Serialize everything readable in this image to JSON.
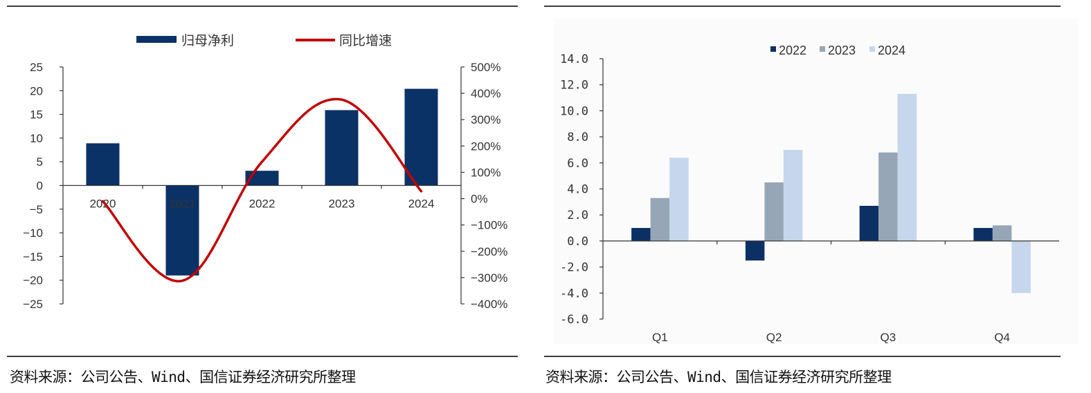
{
  "left": {
    "source": "资料来源：公司公告、Wind、国信证券经济研究所整理"
  },
  "right": {
    "source": "资料来源：公司公告、Wind、国信证券经济研究所整理"
  },
  "chart_data": [
    {
      "type": "bar+line",
      "title": "",
      "categories": [
        "2020",
        "2021",
        "2022",
        "2023",
        "2024"
      ],
      "series": [
        {
          "name": "归母净利",
          "type": "bar",
          "axis": "left",
          "color": "#0b3266",
          "values": [
            8.9,
            -19.0,
            3.1,
            15.9,
            20.4
          ]
        },
        {
          "name": "同比增速",
          "type": "line",
          "axis": "right",
          "color": "#c00000",
          "values": [
            -10,
            -312,
            140,
            376,
            28
          ]
        }
      ],
      "y_left": {
        "ylim": [
          -25,
          25
        ],
        "ticks": [
          25,
          20,
          15,
          10,
          5,
          0,
          -5,
          -10,
          -15,
          -20,
          -25
        ],
        "tick_labels": [
          "25",
          "20",
          "15",
          "10",
          "5",
          "0",
          "−5",
          "−10",
          "−15",
          "−20",
          "−25"
        ]
      },
      "y_right": {
        "ylim": [
          -400,
          500
        ],
        "ticks": [
          500,
          400,
          300,
          200,
          100,
          0,
          -100,
          -200,
          -300,
          -400
        ],
        "tick_labels": [
          "500%",
          "400%",
          "300%",
          "200%",
          "100%",
          "0%",
          "−100%",
          "−200%",
          "−300%",
          "−400%"
        ]
      },
      "xlabel": "",
      "ylabel": "",
      "grid": false,
      "legend": "top-center"
    },
    {
      "type": "bar",
      "title": "",
      "categories": [
        "Q1",
        "Q2",
        "Q3",
        "Q4"
      ],
      "series": [
        {
          "name": "2022",
          "color": "#0c2f64",
          "values": [
            1.0,
            -1.5,
            2.7,
            1.0
          ]
        },
        {
          "name": "2023",
          "color": "#97a6b6",
          "values": [
            3.3,
            4.5,
            6.8,
            1.2
          ]
        },
        {
          "name": "2024",
          "color": "#c6d6ec",
          "values": [
            6.4,
            7.0,
            11.3,
            -4.0
          ]
        }
      ],
      "ylim": [
        -6,
        14
      ],
      "ticks": [
        14,
        12,
        10,
        8,
        6,
        4,
        2,
        0,
        -2,
        -4,
        -6
      ],
      "tick_labels": [
        "14.0",
        "12.0",
        "10.0",
        "8.0",
        "6.0",
        "4.0",
        "2.0",
        "0.0",
        "-2.0",
        "-4.0",
        "-6.0"
      ],
      "xlabel": "",
      "ylabel": "",
      "grid": false,
      "legend": "top-center"
    }
  ]
}
